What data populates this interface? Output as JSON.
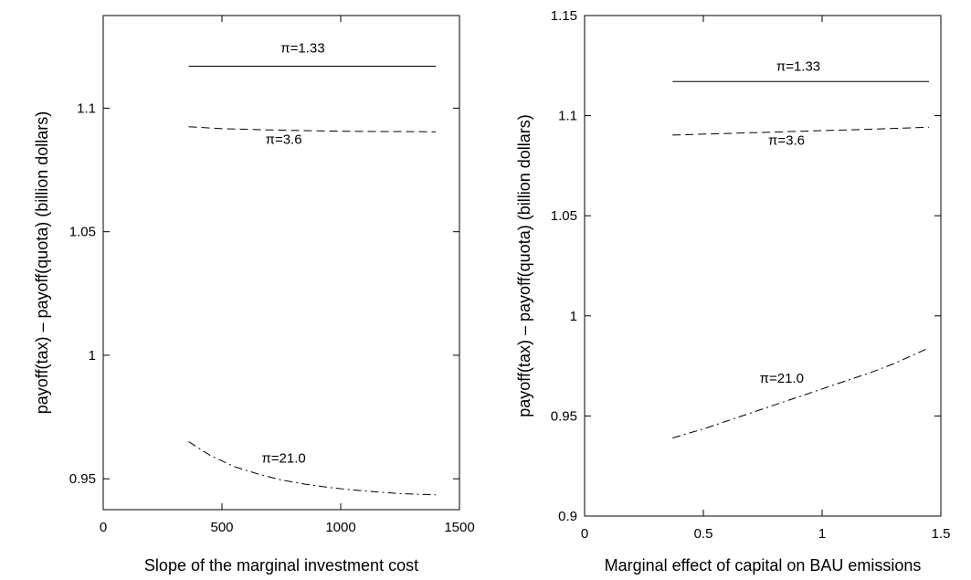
{
  "chart_data": [
    {
      "type": "line",
      "title": "",
      "xlabel": "Slope of the marginal investment cost",
      "ylabel": "payoff(tax) – payoff(quota) (billion dollars)",
      "xlim": [
        0,
        1500
      ],
      "ylim": [
        0.9375,
        1.1375
      ],
      "xticks": [
        0,
        500,
        1000,
        1500
      ],
      "xtick_labels": [
        "0",
        "500",
        "1000",
        "1500"
      ],
      "yticks": [
        0.95,
        1.0,
        1.05,
        1.1
      ],
      "ytick_labels": [
        "0.95",
        "1",
        "1.05",
        "1.1"
      ],
      "grid": false,
      "series": [
        {
          "name": "π=1.33",
          "style": "solid",
          "x": [
            360,
            500,
            700,
            900,
            1100,
            1300,
            1400
          ],
          "y": [
            1.117,
            1.117,
            1.117,
            1.117,
            1.117,
            1.117,
            1.117
          ]
        },
        {
          "name": "π=3.6",
          "style": "dashed",
          "x": [
            360,
            500,
            700,
            900,
            1100,
            1300,
            1400
          ],
          "y": [
            1.0925,
            1.0917,
            1.0912,
            1.0908,
            1.0906,
            1.0905,
            1.0904
          ]
        },
        {
          "name": "π=21.0",
          "style": "dashdot",
          "x": [
            360,
            450,
            550,
            650,
            750,
            850,
            950,
            1050,
            1150,
            1250,
            1400
          ],
          "y": [
            0.965,
            0.9595,
            0.955,
            0.952,
            0.9495,
            0.9478,
            0.9465,
            0.9455,
            0.9447,
            0.944,
            0.9435
          ]
        }
      ],
      "annotations": [
        {
          "text": "π=1.33",
          "x": 840,
          "y": 1.1225
        },
        {
          "text": "π=3.6",
          "x": 760,
          "y": 1.0855
        },
        {
          "text": "π=21.0",
          "x": 760,
          "y": 0.9565
        }
      ]
    },
    {
      "type": "line",
      "title": "",
      "xlabel": "Marginal effect of capital on BAU emissions",
      "ylabel": "payoff(tax) – payoff(quota) (billion dollars)",
      "xlim": [
        0,
        1.5
      ],
      "ylim": [
        0.9,
        1.15
      ],
      "xticks": [
        0,
        0.5,
        1.0,
        1.5
      ],
      "xtick_labels": [
        "0",
        "0.5",
        "1",
        "1.5"
      ],
      "yticks": [
        0.9,
        0.95,
        1.0,
        1.05,
        1.1,
        1.15
      ],
      "ytick_labels": [
        "0.9",
        "0.95",
        "1",
        "1.05",
        "1.1",
        "1.15"
      ],
      "grid": false,
      "series": [
        {
          "name": "π=1.33",
          "style": "solid",
          "x": [
            0.37,
            0.6,
            0.8,
            1.0,
            1.2,
            1.45
          ],
          "y": [
            1.117,
            1.117,
            1.117,
            1.117,
            1.117,
            1.117
          ]
        },
        {
          "name": "π=3.6",
          "style": "dashed",
          "x": [
            0.37,
            0.6,
            0.8,
            1.0,
            1.2,
            1.45
          ],
          "y": [
            1.0903,
            1.0911,
            1.0918,
            1.0925,
            1.0932,
            1.0942
          ]
        },
        {
          "name": "π=21.0",
          "style": "dashdot",
          "x": [
            0.37,
            0.5,
            0.6,
            0.7,
            0.8,
            0.9,
            1.0,
            1.1,
            1.2,
            1.3,
            1.45
          ],
          "y": [
            0.939,
            0.9435,
            0.9475,
            0.9515,
            0.9555,
            0.9595,
            0.9635,
            0.9675,
            0.9715,
            0.976,
            0.984
          ]
        }
      ],
      "annotations": [
        {
          "text": "π=1.33",
          "x": 0.9,
          "y": 1.1225
        },
        {
          "text": "π=3.6",
          "x": 0.85,
          "y": 1.0855
        },
        {
          "text": "π=21.0",
          "x": 0.83,
          "y": 0.9665
        }
      ]
    }
  ]
}
